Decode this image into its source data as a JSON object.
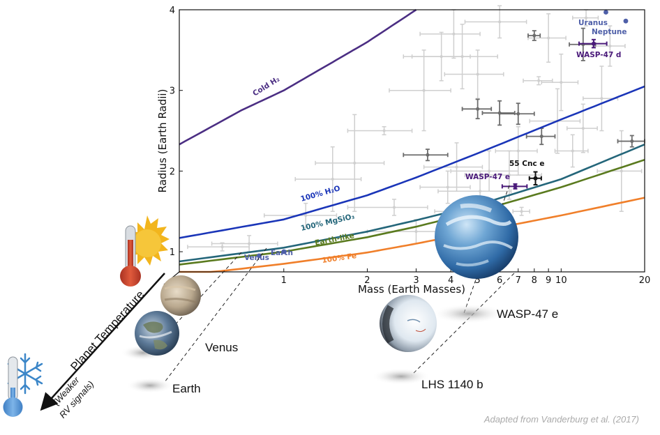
{
  "chart_data": {
    "type": "scatter",
    "xlabel": "Mass (Earth Masses)",
    "ylabel": "Radius (Earth Radii)",
    "xscale": "log",
    "xlim": [
      0.42,
      20
    ],
    "ylim": [
      0.75,
      4.0
    ],
    "x_ticks": [
      1,
      2,
      3,
      4,
      5,
      6,
      7,
      8,
      9,
      10,
      20
    ],
    "y_ticks": [
      1,
      2,
      3,
      4
    ],
    "composition_curves": [
      {
        "name": "Cold H₂",
        "color": "#4b2e83",
        "points": [
          [
            0.42,
            2.33
          ],
          [
            0.7,
            2.75
          ],
          [
            1.0,
            3.0
          ],
          [
            1.5,
            3.35
          ],
          [
            2.0,
            3.6
          ],
          [
            3.0,
            4.0
          ]
        ]
      },
      {
        "name": "100% H₂O",
        "color": "#1a35b8",
        "points": [
          [
            0.42,
            1.17
          ],
          [
            1,
            1.4
          ],
          [
            2,
            1.7
          ],
          [
            3,
            1.92
          ],
          [
            5,
            2.22
          ],
          [
            10,
            2.64
          ],
          [
            20,
            3.05
          ]
        ]
      },
      {
        "name": "100% MgSiO₃",
        "color": "#24667a",
        "points": [
          [
            0.42,
            0.88
          ],
          [
            1,
            1.05
          ],
          [
            2,
            1.25
          ],
          [
            3,
            1.39
          ],
          [
            5,
            1.58
          ],
          [
            10,
            1.9
          ],
          [
            20,
            2.33
          ]
        ]
      },
      {
        "name": "Earth-like",
        "color": "#5a7a1e",
        "points": [
          [
            0.42,
            0.84
          ],
          [
            1,
            1.0
          ],
          [
            2,
            1.18
          ],
          [
            3,
            1.31
          ],
          [
            5,
            1.5
          ],
          [
            10,
            1.8
          ],
          [
            20,
            2.14
          ]
        ]
      },
      {
        "name": "100% Fe",
        "color": "#f07f2a",
        "points": [
          [
            0.42,
            0.7
          ],
          [
            1,
            0.85
          ],
          [
            2,
            0.99
          ],
          [
            3,
            1.1
          ],
          [
            5,
            1.25
          ],
          [
            10,
            1.45
          ],
          [
            20,
            1.67
          ]
        ]
      }
    ],
    "solar_system": [
      {
        "name": "Venus",
        "x": 0.815,
        "y": 0.95
      },
      {
        "name": "Earth",
        "x": 1.0,
        "y": 1.0
      },
      {
        "name": "Uranus",
        "x": 14.5,
        "y": 3.97
      },
      {
        "name": "Neptune",
        "x": 17.1,
        "y": 3.86
      }
    ],
    "highlighted": [
      {
        "name": "55 Cnc e",
        "x": 8.08,
        "y": 1.91,
        "xerr": 0.4,
        "yerr": 0.08,
        "color": "#111111"
      },
      {
        "name": "WASP-47 e",
        "x": 6.83,
        "y": 1.81,
        "xerr": 0.7,
        "yerr": 0.03,
        "color": "#4a1a7a"
      },
      {
        "name": "WASP-47 d",
        "x": 13.1,
        "y": 3.58,
        "xerr": 1.5,
        "yerr": 0.05,
        "color": "#4a1a7a"
      }
    ],
    "dark_points": [
      {
        "x": 8.0,
        "y": 3.68,
        "xerr": 0.4,
        "yerr": 0.06
      },
      {
        "x": 5.0,
        "y": 2.77,
        "xerr": 0.6,
        "yerr": 0.12
      },
      {
        "x": 6.0,
        "y": 2.72,
        "xerr": 0.8,
        "yerr": 0.15
      },
      {
        "x": 7.0,
        "y": 2.71,
        "xerr": 1.0,
        "yerr": 0.13
      },
      {
        "x": 8.5,
        "y": 2.43,
        "xerr": 1.0,
        "yerr": 0.1
      },
      {
        "x": 3.3,
        "y": 2.2,
        "xerr": 0.6,
        "yerr": 0.07
      },
      {
        "x": 18.0,
        "y": 2.37,
        "xerr": 2.0,
        "yerr": 0.07
      },
      {
        "x": 12.0,
        "y": 3.57,
        "xerr": 1.3,
        "yerr": 0.2
      }
    ],
    "light_points": [
      {
        "x": 3.7,
        "y": 3.42,
        "xerr": 1.0,
        "yerr": 0.3
      },
      {
        "x": 4.4,
        "y": 3.42,
        "xerr": 1.5,
        "yerr": 0.4
      },
      {
        "x": 5.0,
        "y": 3.2,
        "xerr": 1.2,
        "yerr": 0.3
      },
      {
        "x": 4.1,
        "y": 3.7,
        "xerr": 1.0,
        "yerr": 0.3
      },
      {
        "x": 6.0,
        "y": 3.85,
        "xerr": 1.5,
        "yerr": 0.2
      },
      {
        "x": 9.0,
        "y": 3.65,
        "xerr": 1.4,
        "yerr": 0.3
      },
      {
        "x": 12.3,
        "y": 3.9,
        "xerr": 1.3,
        "yerr": 0.1
      },
      {
        "x": 15.0,
        "y": 3.55,
        "xerr": 2.0,
        "yerr": 0.25
      },
      {
        "x": 10.0,
        "y": 3.1,
        "xerr": 1.5,
        "yerr": 0.35
      },
      {
        "x": 8.3,
        "y": 3.12,
        "xerr": 1.0,
        "yerr": 0.05
      },
      {
        "x": 12.0,
        "y": 2.53,
        "xerr": 1.5,
        "yerr": 0.3
      },
      {
        "x": 9.7,
        "y": 2.62,
        "xerr": 2.0,
        "yerr": 0.4
      },
      {
        "x": 11.0,
        "y": 2.25,
        "xerr": 1.5,
        "yerr": 0.2
      },
      {
        "x": 7.0,
        "y": 2.25,
        "xerr": 1.2,
        "yerr": 0.3
      },
      {
        "x": 4.2,
        "y": 2.05,
        "xerr": 1.0,
        "yerr": 0.3
      },
      {
        "x": 5.5,
        "y": 2.0,
        "xerr": 1.5,
        "yerr": 0.25
      },
      {
        "x": 6.5,
        "y": 1.95,
        "xerr": 2.0,
        "yerr": 0.3
      },
      {
        "x": 5.1,
        "y": 1.75,
        "xerr": 1.5,
        "yerr": 0.25
      },
      {
        "x": 3.9,
        "y": 1.8,
        "xerr": 0.8,
        "yerr": 0.2
      },
      {
        "x": 2.3,
        "y": 2.5,
        "xerr": 0.6,
        "yerr": 0.05
      },
      {
        "x": 1.5,
        "y": 1.9,
        "xerr": 0.4,
        "yerr": 0.4
      },
      {
        "x": 2.5,
        "y": 1.55,
        "xerr": 0.8,
        "yerr": 0.1
      },
      {
        "x": 1.2,
        "y": 1.45,
        "xerr": 0.35,
        "yerr": 0.15
      },
      {
        "x": 3.0,
        "y": 1.25,
        "xerr": 1.0,
        "yerr": 0.15
      },
      {
        "x": 0.6,
        "y": 1.06,
        "xerr": 0.15,
        "yerr": 0.05
      },
      {
        "x": 0.75,
        "y": 1.1,
        "xerr": 0.2,
        "yerr": 0.1
      },
      {
        "x": 5.0,
        "y": 1.45,
        "xerr": 1.0,
        "yerr": 0.15
      },
      {
        "x": 7.2,
        "y": 1.5,
        "xerr": 0.5,
        "yerr": 0.05
      },
      {
        "x": 4.2,
        "y": 1.5,
        "xerr": 0.7,
        "yerr": 0.05
      },
      {
        "x": 14.0,
        "y": 2.9,
        "xerr": 2.0,
        "yerr": 0.4
      },
      {
        "x": 16.5,
        "y": 2.0,
        "xerr": 3.0,
        "yerr": 0.5
      },
      {
        "x": 3.2,
        "y": 3.0,
        "xerr": 0.8,
        "yerr": 0.5
      },
      {
        "x": 1.8,
        "y": 2.1,
        "xerr": 0.5,
        "yerr": 0.6
      }
    ],
    "right_labels": [
      {
        "name": "WASP-47 e"
      },
      {
        "name": "LHS 1140 b"
      }
    ],
    "left_labels": [
      {
        "name": "Venus"
      },
      {
        "name": "Earth"
      }
    ],
    "temperature_axis": {
      "title": "Planet Temperature",
      "subtitle_line1": "(Weaker",
      "subtitle_line2": "RV signals)"
    },
    "credit": "Adapted from Vanderburg et al. (2017)"
  },
  "colors": {
    "solar_point": "#4e5fa8",
    "solar_label": "#4e5fa8",
    "dark_errbar": "#6d6d6d",
    "light_errbar": "#cfcfcf"
  }
}
